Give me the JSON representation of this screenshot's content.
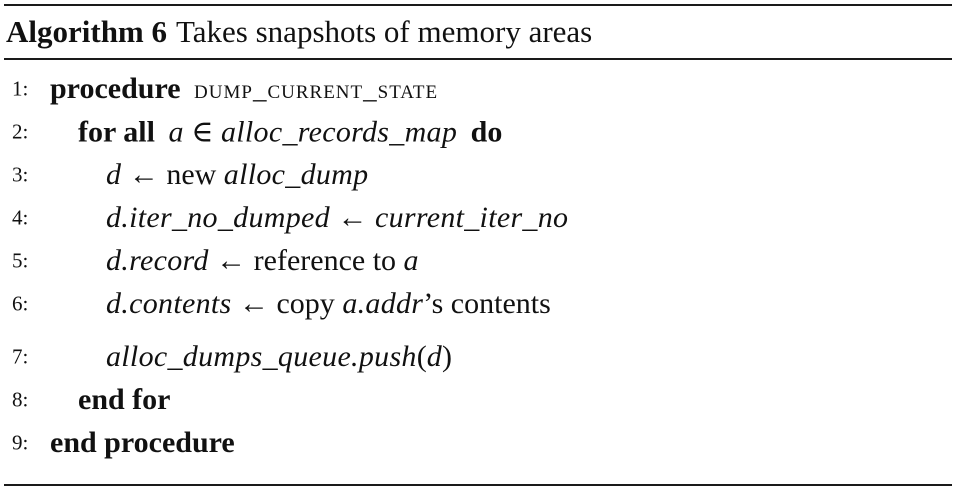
{
  "caption": {
    "label": "Algorithm 6",
    "title": "Takes snapshots of memory areas"
  },
  "lines": [
    {
      "num": "1:",
      "kw": "procedure",
      "name": "dump_current_state"
    },
    {
      "num": "2:",
      "kw1": "for all",
      "var": "a",
      "op": "∈",
      "set": "alloc_records_map",
      "kw2": "do"
    },
    {
      "num": "3:",
      "lhs": "d",
      "arrow": "←",
      "text": "new",
      "rhs": "alloc_dump"
    },
    {
      "num": "4:",
      "lhs": "d.iter_no_dumped",
      "arrow": "←",
      "rhs": "current_iter_no"
    },
    {
      "num": "5:",
      "lhs": "d.record",
      "arrow": "←",
      "text": "reference to",
      "rhs": "a"
    },
    {
      "num": "6:",
      "lhs": "d.contents",
      "arrow": "←",
      "text": "copy",
      "rhs": "a.addr",
      "suffix": "’s contents"
    },
    {
      "num": "7:",
      "call": "alloc_dumps_queue.push",
      "open": "(",
      "arg": "d",
      "close": ")"
    },
    {
      "num": "8:",
      "kw": "end for"
    },
    {
      "num": "9:",
      "kw": "end procedure"
    }
  ]
}
